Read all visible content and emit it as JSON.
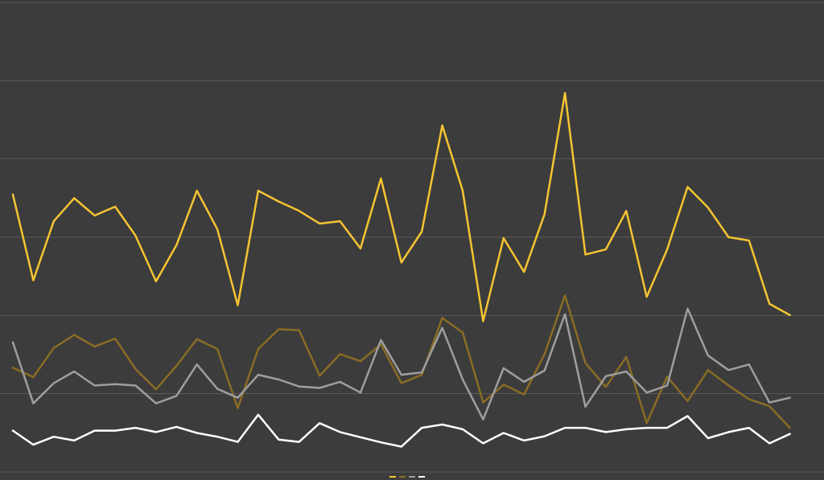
{
  "chart_data": {
    "type": "line",
    "title": "",
    "xlabel": "",
    "ylabel": "",
    "background": "#3c3c3c",
    "grid": true,
    "legend": "bottom",
    "ylim": [
      0,
      100
    ],
    "y_gridlines": [
      0,
      16.7,
      33.3,
      50,
      66.7,
      83.3,
      100
    ],
    "x": [
      1,
      2,
      3,
      4,
      5,
      6,
      7,
      8,
      9,
      10,
      11,
      12,
      13,
      14,
      15,
      16,
      17,
      18,
      19,
      20,
      21,
      22,
      23,
      24,
      25,
      26,
      27,
      28,
      29,
      30,
      31,
      32,
      33,
      34,
      35,
      36,
      37,
      38,
      39,
      40
    ],
    "series": [
      {
        "color": "#f5c431",
        "values": [
          59.1,
          40.8,
          53.4,
          58.3,
          54.6,
          56.5,
          50.3,
          40.6,
          48.3,
          59.9,
          51.7,
          35.5,
          59.9,
          57.6,
          55.6,
          52.9,
          53.4,
          47.6,
          62.5,
          44.6,
          51.2,
          73.8,
          59.9,
          32.1,
          49.8,
          42.6,
          54.9,
          80.7,
          46.3,
          47.4,
          55.6,
          37.3,
          47.4,
          60.7,
          56.3,
          50,
          49.3,
          35.8,
          33.4,
          null
        ]
      },
      {
        "color": "#8a6c25",
        "values": [
          22.2,
          20.2,
          26.4,
          29.2,
          26.7,
          28.4,
          21.9,
          17.6,
          22.6,
          28.3,
          26.2,
          13.6,
          26.2,
          30.4,
          30.2,
          20.5,
          25.1,
          23.6,
          27.2,
          18.9,
          20.7,
          32.8,
          29.7,
          14.8,
          18.6,
          16.5,
          25.1,
          37.6,
          23.2,
          18.1,
          24.5,
          10.4,
          20.3,
          15.1,
          21.7,
          18.4,
          15.5,
          14,
          9.4,
          null
        ]
      },
      {
        "color": "#9e9e9e",
        "values": [
          27.6,
          14.6,
          18.9,
          21.4,
          18.4,
          18.7,
          18.4,
          14.6,
          16.2,
          22.9,
          17.7,
          15.8,
          20.7,
          19.7,
          18.2,
          17.9,
          19.2,
          16.9,
          28.1,
          20.7,
          21.2,
          30.7,
          19.7,
          11.2,
          22.1,
          19.2,
          21.6,
          33.6,
          13.9,
          20.4,
          21.4,
          16.9,
          18.4,
          34.8,
          24.8,
          21.7,
          22.9,
          14.8,
          15.8,
          null
        ]
      },
      {
        "color": "#ffffff",
        "values": [
          8.8,
          5.8,
          7.5,
          6.7,
          8.8,
          8.8,
          9.4,
          8.5,
          9.6,
          8.3,
          7.5,
          6.4,
          12.2,
          6.9,
          6.4,
          10.4,
          8.5,
          7.4,
          6.3,
          5.4,
          9.4,
          10.1,
          9.1,
          6.1,
          8.3,
          6.7,
          7.6,
          9.4,
          9.4,
          8.5,
          9.1,
          9.4,
          9.4,
          11.9,
          7.2,
          8.5,
          9.4,
          6.1,
          8.1,
          null
        ]
      }
    ]
  }
}
